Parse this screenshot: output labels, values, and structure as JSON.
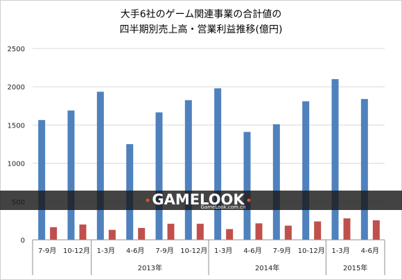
{
  "chart_data": {
    "type": "bar",
    "title_lines": [
      "大手6社のゲーム関連事業の合計値の",
      "四半期別売上高・営業利益推移(億円)"
    ],
    "categories": [
      "7-9月",
      "10-12月",
      "1-3月",
      "4-6月",
      "7-9月",
      "10-12月",
      "1-3月",
      "4-6月",
      "7-9月",
      "10-12月",
      "1-3月",
      "4-6月"
    ],
    "year_groups": [
      {
        "label": "",
        "count": 2
      },
      {
        "label": "2013年",
        "count": 4
      },
      {
        "label": "2014年",
        "count": 4
      },
      {
        "label": "2015年",
        "count": 2
      }
    ],
    "series": [
      {
        "values": [
          1565,
          1690,
          1935,
          1250,
          1665,
          1825,
          1980,
          1410,
          1510,
          1810,
          2100,
          1840
        ],
        "color": "#4F81BD"
      },
      {
        "values": [
          165,
          200,
          130,
          155,
          210,
          210,
          140,
          215,
          185,
          240,
          280,
          255
        ],
        "color": "#C0504D"
      }
    ],
    "ylim": [
      0,
      2500
    ],
    "yticks": [
      0,
      500,
      1000,
      1500,
      2000,
      2500
    ],
    "grid": true,
    "xlabel": "",
    "ylabel": ""
  },
  "watermark": {
    "text": "GAMELOOK",
    "subtext": "GameLook.com.cn",
    "band_color": "#1a1a1a",
    "accent": "#e8501a"
  }
}
